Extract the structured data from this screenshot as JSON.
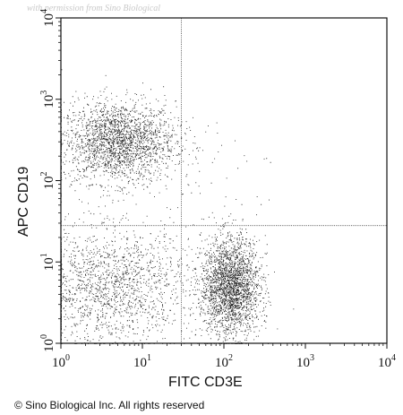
{
  "watermark": "with permission from Sino Biological",
  "copyright": "© Sino Biological Inc. All rights reserved",
  "chart_data": {
    "type": "scatter",
    "xlabel": "FITC CD3E",
    "ylabel": "APC CD19",
    "x_scale": "log",
    "y_scale": "log",
    "xlim": [
      1,
      10000
    ],
    "ylim": [
      1,
      10000
    ],
    "x_ticks": [
      "10^0",
      "10^1",
      "10^2",
      "10^3",
      "10^4"
    ],
    "y_ticks": [
      "10^0",
      "10^1",
      "10^2",
      "10^3",
      "10^4"
    ],
    "gates": {
      "x": 30,
      "y": 28
    },
    "grid": false,
    "populations": [
      {
        "center": [
          5,
          300
        ],
        "spread_decades": [
          0.35,
          0.25
        ],
        "approx_events": 2200
      },
      {
        "center": [
          120,
          5
        ],
        "spread_decades": [
          0.18,
          0.3
        ],
        "approx_events": 2400
      },
      {
        "center": [
          4,
          5
        ],
        "spread_decades": [
          0.5,
          0.35
        ],
        "approx_events": 1600
      }
    ],
    "point_color": "#1a1a1a"
  }
}
